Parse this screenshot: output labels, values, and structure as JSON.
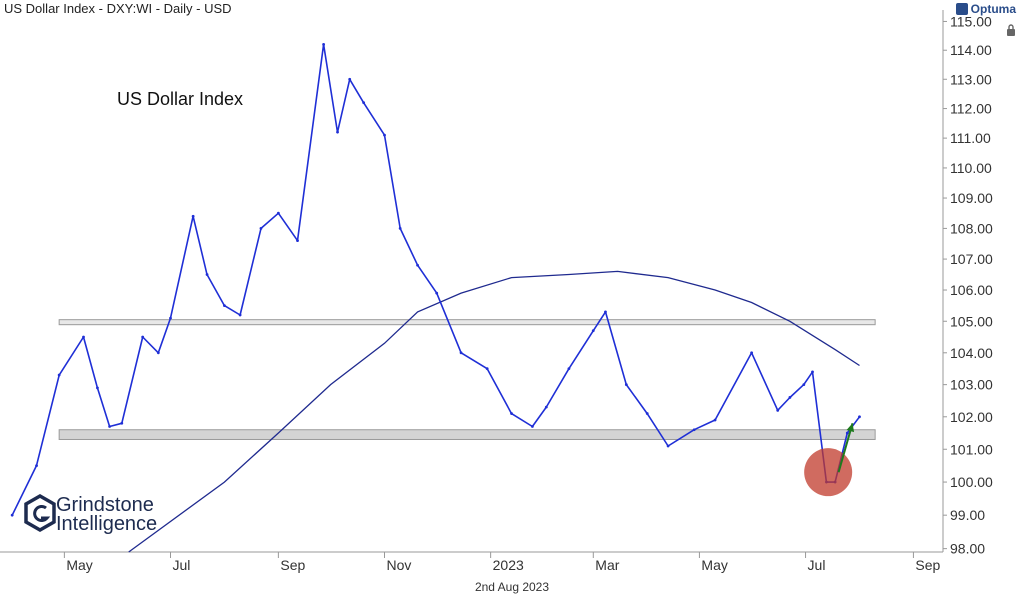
{
  "header": {
    "title": "US Dollar Index - DXY:WI - Daily - USD",
    "brand": "Optuma"
  },
  "annotation": "US Dollar Index",
  "watermark": {
    "line1": "Grindstone",
    "line2": "Intelligence"
  },
  "footer_date": "2nd Aug 2023",
  "colors": {
    "price": "#1f2fd6",
    "moving_average": "#1f2a8f",
    "support_band": "#d4d4d4",
    "highlight_circle": "#c0392b",
    "arrow": "#1e7a1e"
  },
  "chart_data": {
    "type": "line",
    "title": "US Dollar Index - DXY:WI - Daily - USD",
    "xlabel": "",
    "ylabel": "",
    "x_tick_labels": [
      "May",
      "Jul",
      "Sep",
      "Nov",
      "2023",
      "Mar",
      "May",
      "Jul",
      "Sep"
    ],
    "y_ticks": [
      98,
      99,
      100,
      101,
      102,
      103,
      104,
      105,
      106,
      107,
      108,
      109,
      110,
      111,
      112,
      113,
      114,
      115
    ],
    "y_tick_labels": [
      "98.00",
      "99.00",
      "100.00",
      "101.00",
      "102.00",
      "103.00",
      "104.00",
      "105.00",
      "106.00",
      "107.00",
      "108.00",
      "109.00",
      "110.00",
      "111.00",
      "112.00",
      "113.00",
      "114.00",
      "115.00"
    ],
    "ylim": [
      97.9,
      115.4
    ],
    "scale": "log",
    "grid": false,
    "price_series": {
      "x": [
        "2022-04-01",
        "2022-04-15",
        "2022-04-28",
        "2022-05-12",
        "2022-05-20",
        "2022-05-27",
        "2022-06-03",
        "2022-06-15",
        "2022-06-24",
        "2022-07-01",
        "2022-07-14",
        "2022-07-22",
        "2022-08-01",
        "2022-08-10",
        "2022-08-22",
        "2022-09-01",
        "2022-09-12",
        "2022-09-27",
        "2022-10-05",
        "2022-10-12",
        "2022-10-20",
        "2022-11-01",
        "2022-11-10",
        "2022-11-20",
        "2022-12-01",
        "2022-12-15",
        "2022-12-30",
        "2023-01-13",
        "2023-01-25",
        "2023-02-02",
        "2023-02-15",
        "2023-03-01",
        "2023-03-08",
        "2023-03-20",
        "2023-04-01",
        "2023-04-13",
        "2023-04-28",
        "2023-05-10",
        "2023-05-31",
        "2023-06-15",
        "2023-06-22",
        "2023-06-30",
        "2023-07-05",
        "2023-07-13",
        "2023-07-18",
        "2023-07-25",
        "2023-08-01"
      ],
      "values": [
        99.0,
        100.5,
        103.3,
        104.5,
        102.9,
        101.7,
        101.8,
        104.5,
        104.0,
        105.1,
        108.4,
        106.5,
        105.5,
        105.2,
        108.0,
        108.5,
        107.6,
        114.2,
        111.2,
        113.0,
        112.2,
        111.1,
        108.0,
        106.8,
        105.9,
        104.0,
        103.5,
        102.1,
        101.7,
        102.3,
        103.5,
        104.7,
        105.3,
        103.0,
        102.1,
        101.1,
        101.6,
        101.9,
        104.0,
        102.2,
        102.6,
        103.0,
        103.4,
        100.0,
        100.0,
        101.5,
        102.0
      ]
    },
    "moving_average": {
      "x": [
        "2022-06-07",
        "2022-08-01",
        "2022-09-01",
        "2022-10-01",
        "2022-11-01",
        "2022-11-20",
        "2022-12-15",
        "2023-01-13",
        "2023-02-15",
        "2023-03-15",
        "2023-04-13",
        "2023-05-10",
        "2023-05-31",
        "2023-06-22",
        "2023-07-18",
        "2023-08-01"
      ],
      "values": [
        97.9,
        100.0,
        101.5,
        103.0,
        104.3,
        105.3,
        105.9,
        106.4,
        106.5,
        106.6,
        106.4,
        106.0,
        105.6,
        105.0,
        104.1,
        103.6
      ]
    },
    "bands": [
      {
        "name": "",
        "low": 104.9,
        "high": 105.05
      },
      {
        "name": "",
        "low": 101.3,
        "high": 101.6
      }
    ],
    "annotations": [
      {
        "type": "circle",
        "x": "2023-07-14",
        "y": 100.3
      },
      {
        "type": "arrow",
        "from": [
          "2023-07-20",
          100.3
        ],
        "to": [
          "2023-07-28",
          101.8
        ]
      }
    ]
  }
}
